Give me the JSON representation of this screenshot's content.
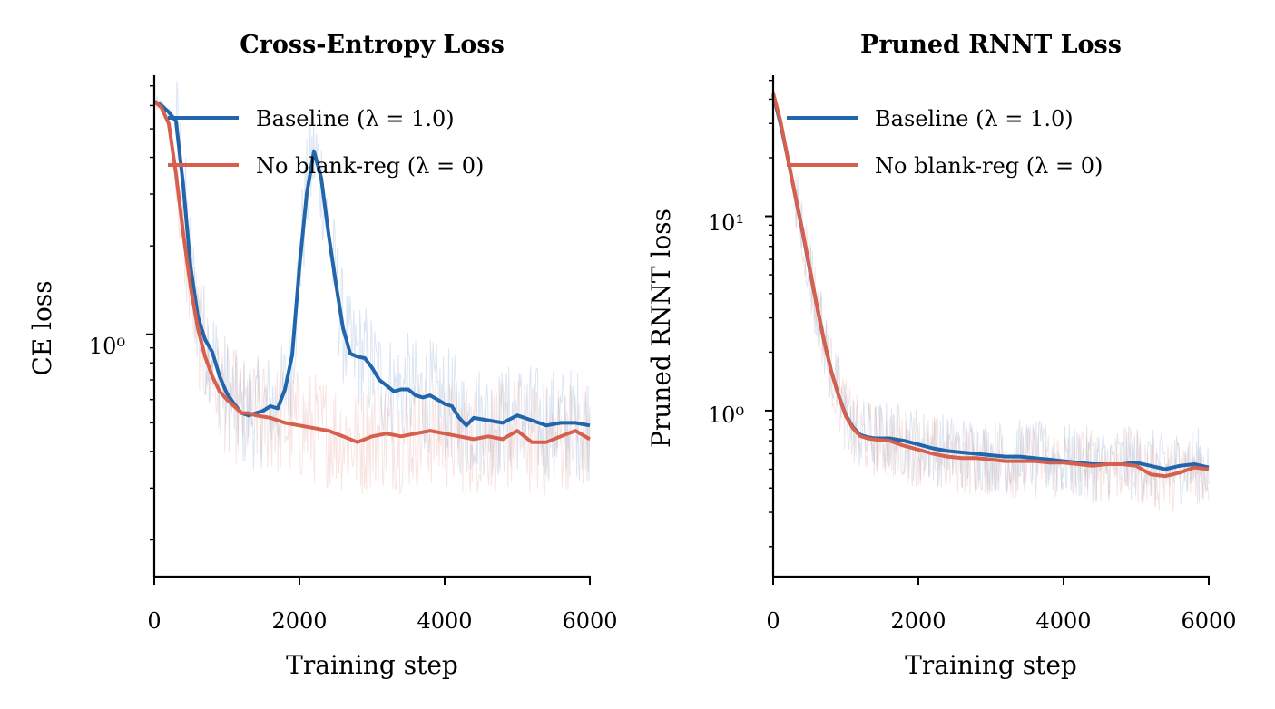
{
  "colors": {
    "baseline": "#2166ac",
    "noreg": "#d6604d"
  },
  "chart_data": [
    {
      "type": "line",
      "title": "Cross-Entropy Loss",
      "xlabel": "Training step",
      "ylabel": "CE loss",
      "xlim": [
        0,
        6000
      ],
      "ylim": [
        0.15,
        7.5
      ],
      "yscale": "log",
      "xticks": [
        "0",
        "2000",
        "4000",
        "6000"
      ],
      "ytick_label": "10⁰",
      "legend": "upper-right",
      "series": [
        {
          "name": "Baseline (λ = 1.0)",
          "x": [
            0,
            100,
            200,
            300,
            400,
            500,
            600,
            700,
            800,
            900,
            1000,
            1100,
            1200,
            1300,
            1400,
            1500,
            1600,
            1700,
            1800,
            1900,
            2000,
            2100,
            2200,
            2300,
            2400,
            2500,
            2600,
            2700,
            2800,
            2900,
            3000,
            3100,
            3200,
            3300,
            3400,
            3500,
            3600,
            3700,
            3800,
            3900,
            4000,
            4100,
            4200,
            4300,
            4400,
            4600,
            4800,
            5000,
            5100,
            5200,
            5400,
            5600,
            5800,
            6000
          ],
          "y": [
            6.2,
            6.0,
            5.7,
            5.3,
            3.2,
            1.7,
            1.15,
            0.96,
            0.87,
            0.72,
            0.63,
            0.58,
            0.54,
            0.53,
            0.54,
            0.55,
            0.57,
            0.56,
            0.65,
            0.85,
            1.7,
            3.0,
            4.2,
            3.4,
            2.2,
            1.5,
            1.05,
            0.86,
            0.84,
            0.83,
            0.77,
            0.7,
            0.67,
            0.64,
            0.65,
            0.65,
            0.62,
            0.61,
            0.62,
            0.6,
            0.58,
            0.57,
            0.52,
            0.49,
            0.52,
            0.51,
            0.5,
            0.53,
            0.52,
            0.51,
            0.49,
            0.5,
            0.5,
            0.49
          ]
        },
        {
          "name": "No blank-reg (λ = 0)",
          "x": [
            0,
            100,
            200,
            300,
            400,
            500,
            600,
            700,
            800,
            900,
            1000,
            1100,
            1200,
            1300,
            1400,
            1600,
            1800,
            2000,
            2200,
            2400,
            2600,
            2800,
            3000,
            3200,
            3400,
            3600,
            3800,
            4000,
            4200,
            4400,
            4600,
            4800,
            5000,
            5200,
            5400,
            5600,
            5800,
            6000
          ],
          "y": [
            6.2,
            5.9,
            5.2,
            3.5,
            2.2,
            1.45,
            1.05,
            0.84,
            0.72,
            0.64,
            0.6,
            0.57,
            0.54,
            0.54,
            0.53,
            0.52,
            0.5,
            0.49,
            0.48,
            0.47,
            0.45,
            0.43,
            0.45,
            0.46,
            0.45,
            0.46,
            0.47,
            0.46,
            0.45,
            0.44,
            0.45,
            0.44,
            0.47,
            0.43,
            0.43,
            0.45,
            0.47,
            0.44
          ]
        }
      ]
    },
    {
      "type": "line",
      "title": "Pruned RNNT Loss",
      "xlabel": "Training step",
      "ylabel": "Pruned RNNT loss",
      "xlim": [
        0,
        6000
      ],
      "ylim": [
        0.14,
        52
      ],
      "yscale": "log",
      "xticks": [
        "0",
        "2000",
        "4000",
        "6000"
      ],
      "ytick_labels": [
        "10¹",
        "10⁰"
      ],
      "legend": "upper-right",
      "series": [
        {
          "name": "Baseline (λ = 1.0)",
          "x": [
            0,
            100,
            200,
            300,
            400,
            500,
            600,
            700,
            800,
            900,
            1000,
            1100,
            1200,
            1300,
            1400,
            1600,
            1800,
            2000,
            2200,
            2400,
            2600,
            2800,
            3000,
            3200,
            3400,
            3600,
            3800,
            4000,
            4200,
            4400,
            4600,
            4800,
            5000,
            5200,
            5400,
            5600,
            5800,
            6000
          ],
          "y": [
            42,
            30,
            20,
            13,
            8.5,
            5.4,
            3.5,
            2.3,
            1.6,
            1.2,
            0.95,
            0.82,
            0.75,
            0.73,
            0.72,
            0.72,
            0.7,
            0.67,
            0.64,
            0.62,
            0.61,
            0.6,
            0.59,
            0.58,
            0.58,
            0.57,
            0.56,
            0.55,
            0.54,
            0.53,
            0.53,
            0.53,
            0.54,
            0.52,
            0.5,
            0.52,
            0.53,
            0.51
          ]
        },
        {
          "name": "No blank-reg (λ = 0)",
          "x": [
            0,
            100,
            200,
            300,
            400,
            500,
            600,
            700,
            800,
            900,
            1000,
            1100,
            1200,
            1300,
            1400,
            1600,
            1800,
            2000,
            2200,
            2400,
            2600,
            2800,
            3000,
            3200,
            3400,
            3600,
            3800,
            4000,
            4200,
            4400,
            4600,
            4800,
            5000,
            5200,
            5400,
            5600,
            5800,
            6000
          ],
          "y": [
            43,
            31,
            20,
            13,
            8.6,
            5.5,
            3.5,
            2.3,
            1.6,
            1.2,
            0.94,
            0.81,
            0.74,
            0.72,
            0.71,
            0.7,
            0.66,
            0.63,
            0.6,
            0.58,
            0.57,
            0.57,
            0.56,
            0.55,
            0.55,
            0.55,
            0.54,
            0.54,
            0.53,
            0.52,
            0.53,
            0.53,
            0.52,
            0.47,
            0.46,
            0.48,
            0.51,
            0.5
          ]
        }
      ]
    }
  ]
}
